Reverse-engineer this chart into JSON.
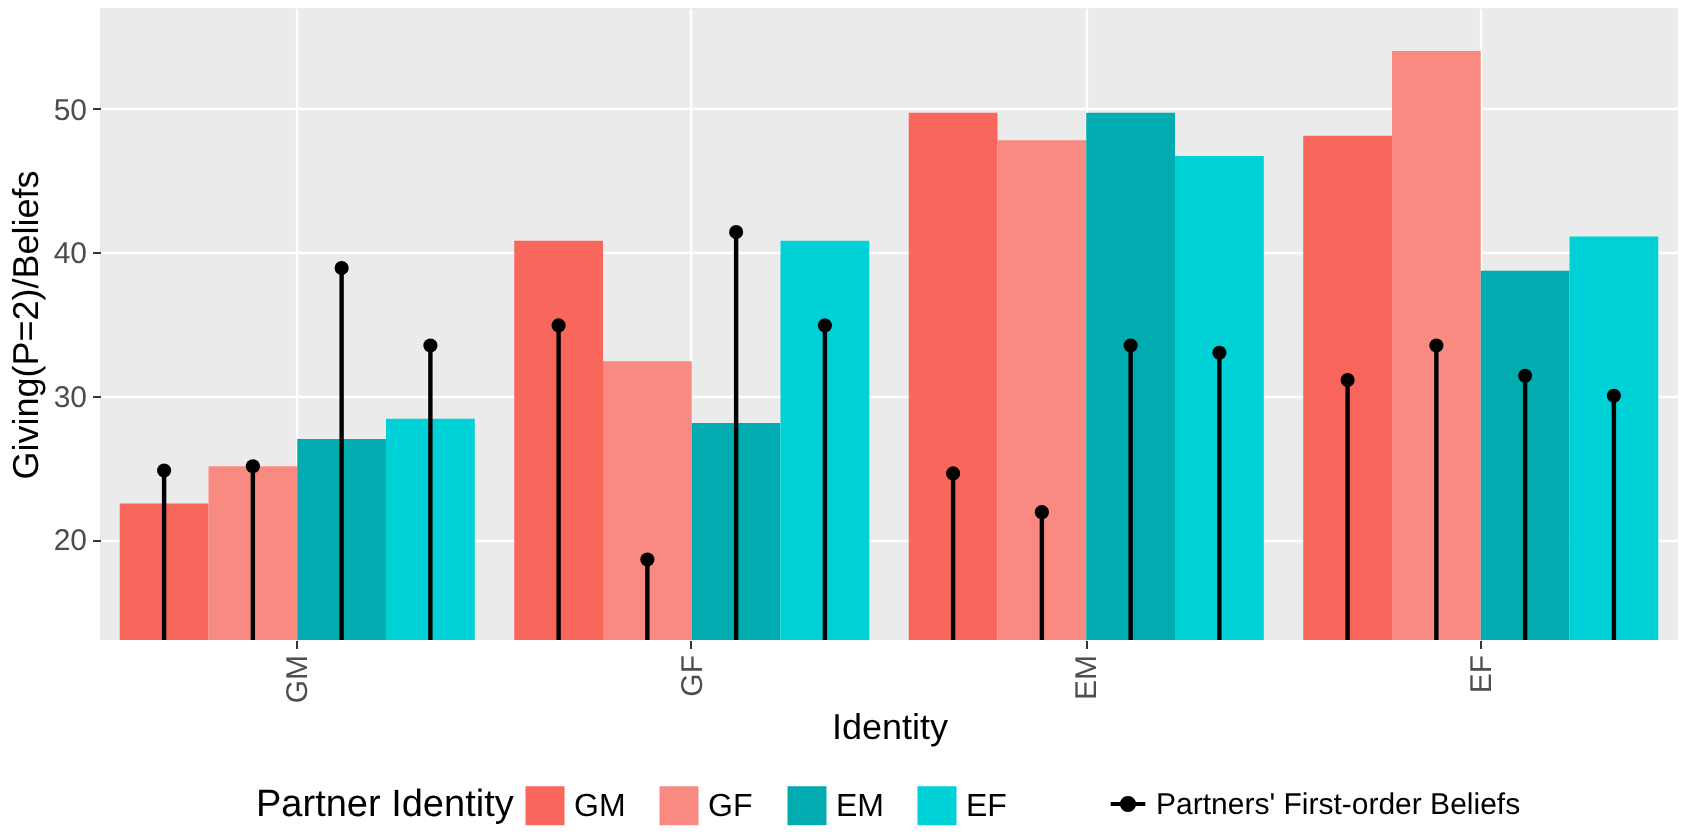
{
  "chart_data": {
    "type": "bar",
    "xlabel": "Identity",
    "ylabel": "Giving(P=2)/Beliefs",
    "legend_title": "Partner Identity",
    "categories": [
      "GM",
      "GF",
      "EM",
      "EF"
    ],
    "series": [
      {
        "name": "GM",
        "color": "#f8665c",
        "values": [
          22.5,
          40.8,
          49.7,
          48.1
        ]
      },
      {
        "name": "GF",
        "color": "#f98a82",
        "values": [
          25.1,
          32.4,
          47.8,
          54.0
        ]
      },
      {
        "name": "EM",
        "color": "#00acaf",
        "values": [
          27.0,
          28.1,
          49.7,
          38.7
        ]
      },
      {
        "name": "EF",
        "color": "#00d1d6",
        "values": [
          28.4,
          40.8,
          46.7,
          41.1
        ]
      },
      {
        "name": "Partners' First-order Beliefs",
        "type": "lollipop",
        "color": "#000000",
        "values": [
          24.8,
          34.9,
          24.6,
          31.1
        ]
      },
      {
        "type": "lollipop",
        "color": "#000000",
        "values": [
          25.1,
          18.6,
          21.9,
          33.5
        ]
      },
      {
        "type": "lollipop",
        "color": "#000000",
        "values": [
          38.9,
          41.4,
          33.5,
          31.4
        ]
      },
      {
        "type": "lollipop",
        "color": "#000000",
        "values": [
          33.5,
          34.9,
          33.0,
          30.0
        ]
      }
    ],
    "ylim": [
      13,
      57
    ],
    "yticks": [
      20,
      30,
      40,
      50
    ],
    "grid": true,
    "legend": "bottom",
    "marker": "circle"
  }
}
